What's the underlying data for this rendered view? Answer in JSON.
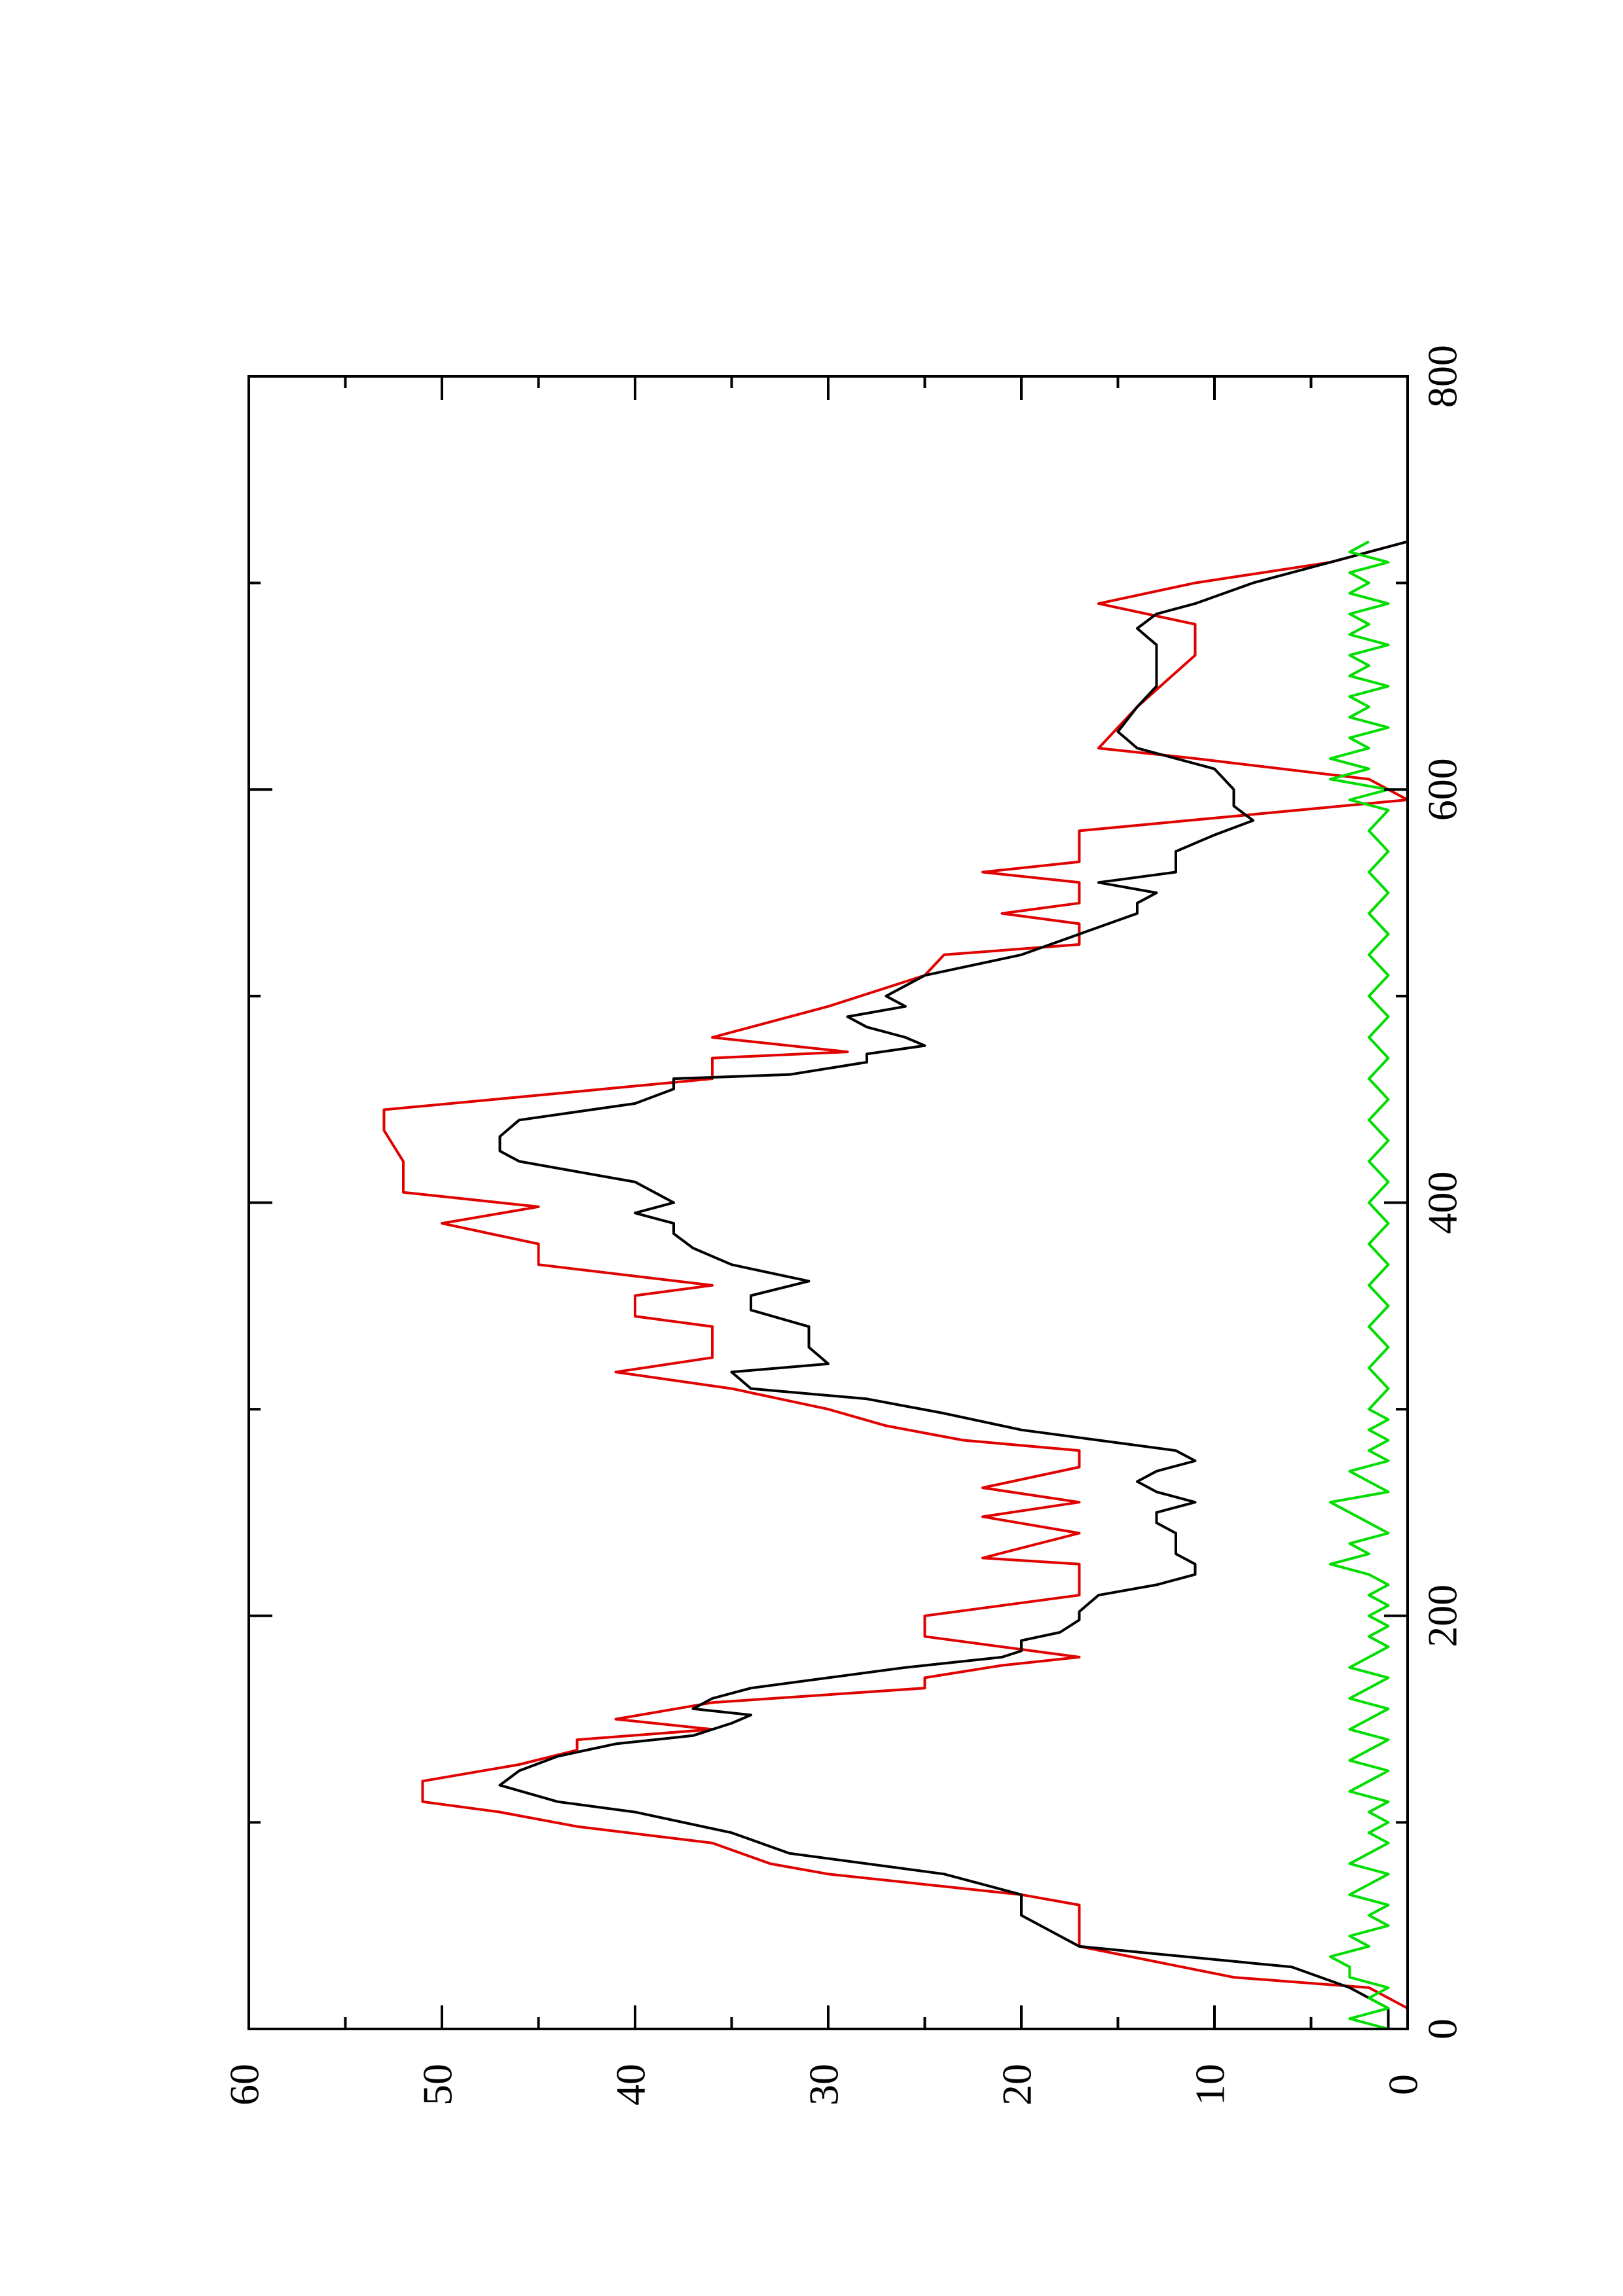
{
  "chart_data": {
    "type": "line",
    "orientation": "rotated-90-counterclockwise",
    "title": "",
    "xlabel": "",
    "ylabel": "",
    "xlim": [
      0,
      800
    ],
    "ylim": [
      0,
      60
    ],
    "x_ticks": [
      0,
      200,
      400,
      600,
      800
    ],
    "x_tick_labels": [
      "0",
      "200",
      "400",
      "600",
      "800"
    ],
    "y_ticks": [
      0,
      10,
      20,
      30,
      40,
      50,
      60
    ],
    "y_tick_labels": [
      "0",
      "10",
      "20",
      "30",
      "40",
      "50",
      "60"
    ],
    "grid": false,
    "legend": "none",
    "series": [
      {
        "color": "#e00000",
        "style": "step",
        "points": [
          [
            0,
            0
          ],
          [
            10,
            0
          ],
          [
            20,
            2
          ],
          [
            25,
            9
          ],
          [
            40,
            17
          ],
          [
            60,
            17
          ],
          [
            65,
            20
          ],
          [
            70,
            25
          ],
          [
            75,
            30
          ],
          [
            80,
            33
          ],
          [
            90,
            36
          ],
          [
            98,
            43
          ],
          [
            105,
            47
          ],
          [
            110,
            51
          ],
          [
            120,
            51
          ],
          [
            128,
            46
          ],
          [
            135,
            43
          ],
          [
            140,
            43
          ],
          [
            145,
            36
          ],
          [
            150,
            41
          ],
          [
            158,
            36
          ],
          [
            165,
            25
          ],
          [
            170,
            25
          ],
          [
            176,
            21
          ],
          [
            180,
            17
          ],
          [
            190,
            25
          ],
          [
            200,
            25
          ],
          [
            210,
            17
          ],
          [
            225,
            17
          ],
          [
            228,
            22
          ],
          [
            240,
            17
          ],
          [
            248,
            22
          ],
          [
            255,
            17
          ],
          [
            262,
            22
          ],
          [
            272,
            17
          ],
          [
            280,
            17
          ],
          [
            285,
            23
          ],
          [
            292,
            27
          ],
          [
            300,
            30
          ],
          [
            310,
            35
          ],
          [
            318,
            41
          ],
          [
            325,
            36
          ],
          [
            340,
            36
          ],
          [
            345,
            40
          ],
          [
            355,
            40
          ],
          [
            360,
            36
          ],
          [
            370,
            45
          ],
          [
            380,
            45
          ],
          [
            390,
            50
          ],
          [
            398,
            45
          ],
          [
            405,
            52
          ],
          [
            420,
            52
          ],
          [
            435,
            53
          ],
          [
            445,
            53
          ],
          [
            452,
            45
          ],
          [
            460,
            36
          ],
          [
            470,
            36
          ],
          [
            473,
            29
          ],
          [
            480,
            36
          ],
          [
            495,
            30
          ],
          [
            510,
            25
          ],
          [
            520,
            24
          ],
          [
            525,
            17
          ],
          [
            535,
            17
          ],
          [
            540,
            21
          ],
          [
            545,
            17
          ],
          [
            555,
            17
          ],
          [
            560,
            22
          ],
          [
            565,
            17
          ],
          [
            580,
            17
          ],
          [
            595,
            0
          ],
          [
            605,
            2
          ],
          [
            615,
            11
          ],
          [
            620,
            16
          ],
          [
            640,
            14
          ],
          [
            665,
            11
          ],
          [
            680,
            11
          ],
          [
            690,
            16
          ],
          [
            700,
            11
          ],
          [
            710,
            4
          ],
          [
            720,
            0
          ]
        ]
      },
      {
        "color": "#000000",
        "style": "line",
        "points": [
          [
            0,
            1
          ],
          [
            10,
            1
          ],
          [
            20,
            3
          ],
          [
            30,
            6
          ],
          [
            40,
            17
          ],
          [
            45,
            18
          ],
          [
            55,
            20
          ],
          [
            65,
            20
          ],
          [
            75,
            24
          ],
          [
            85,
            32
          ],
          [
            95,
            35
          ],
          [
            105,
            40
          ],
          [
            110,
            44
          ],
          [
            118,
            47
          ],
          [
            125,
            46
          ],
          [
            132,
            44
          ],
          [
            138,
            41
          ],
          [
            142,
            37
          ],
          [
            148,
            35
          ],
          [
            152,
            34
          ],
          [
            155,
            37
          ],
          [
            160,
            36
          ],
          [
            165,
            34
          ],
          [
            170,
            30
          ],
          [
            175,
            26
          ],
          [
            180,
            21
          ],
          [
            183,
            20
          ],
          [
            188,
            20
          ],
          [
            192,
            18
          ],
          [
            198,
            17
          ],
          [
            202,
            17
          ],
          [
            210,
            16
          ],
          [
            215,
            13
          ],
          [
            220,
            11
          ],
          [
            225,
            11
          ],
          [
            230,
            12
          ],
          [
            240,
            12
          ],
          [
            245,
            13
          ],
          [
            250,
            13
          ],
          [
            255,
            11
          ],
          [
            260,
            13
          ],
          [
            265,
            14
          ],
          [
            270,
            13
          ],
          [
            275,
            11
          ],
          [
            280,
            12
          ],
          [
            285,
            16
          ],
          [
            290,
            20
          ],
          [
            298,
            24
          ],
          [
            305,
            28
          ],
          [
            310,
            34
          ],
          [
            318,
            35
          ],
          [
            322,
            30
          ],
          [
            330,
            31
          ],
          [
            340,
            31
          ],
          [
            348,
            34
          ],
          [
            355,
            34
          ],
          [
            362,
            31
          ],
          [
            370,
            35
          ],
          [
            378,
            37
          ],
          [
            385,
            38
          ],
          [
            390,
            38
          ],
          [
            395,
            40
          ],
          [
            400,
            38
          ],
          [
            410,
            40
          ],
          [
            420,
            46
          ],
          [
            425,
            47
          ],
          [
            432,
            47
          ],
          [
            440,
            46
          ],
          [
            448,
            40
          ],
          [
            455,
            38
          ],
          [
            460,
            38
          ],
          [
            462,
            32
          ],
          [
            468,
            28
          ],
          [
            472,
            28
          ],
          [
            476,
            25
          ],
          [
            480,
            26
          ],
          [
            485,
            28
          ],
          [
            490,
            29
          ],
          [
            495,
            26
          ],
          [
            500,
            27
          ],
          [
            510,
            25
          ],
          [
            520,
            20
          ],
          [
            530,
            17
          ],
          [
            540,
            14
          ],
          [
            545,
            14
          ],
          [
            550,
            13
          ],
          [
            555,
            16
          ],
          [
            560,
            12
          ],
          [
            570,
            12
          ],
          [
            578,
            10
          ],
          [
            585,
            8
          ],
          [
            592,
            9
          ],
          [
            600,
            9
          ],
          [
            610,
            10
          ],
          [
            620,
            14
          ],
          [
            628,
            15
          ],
          [
            640,
            14
          ],
          [
            650,
            13
          ],
          [
            660,
            13
          ],
          [
            670,
            13
          ],
          [
            678,
            14
          ],
          [
            685,
            13
          ],
          [
            690,
            11
          ],
          [
            700,
            8
          ],
          [
            710,
            4
          ],
          [
            720,
            0
          ]
        ]
      },
      {
        "color": "#00dd00",
        "style": "noisy-line",
        "points": [
          [
            0,
            1
          ],
          [
            5,
            3
          ],
          [
            10,
            1
          ],
          [
            15,
            2
          ],
          [
            20,
            1
          ],
          [
            25,
            3
          ],
          [
            30,
            3
          ],
          [
            35,
            4
          ],
          [
            40,
            2
          ],
          [
            45,
            3
          ],
          [
            50,
            1
          ],
          [
            55,
            2
          ],
          [
            60,
            1
          ],
          [
            65,
            3
          ],
          [
            70,
            2
          ],
          [
            75,
            1
          ],
          [
            80,
            3
          ],
          [
            85,
            2
          ],
          [
            90,
            1
          ],
          [
            95,
            2
          ],
          [
            100,
            1
          ],
          [
            105,
            2
          ],
          [
            110,
            1
          ],
          [
            115,
            3
          ],
          [
            120,
            2
          ],
          [
            125,
            1
          ],
          [
            130,
            3
          ],
          [
            135,
            2
          ],
          [
            140,
            1
          ],
          [
            145,
            3
          ],
          [
            150,
            2
          ],
          [
            155,
            1
          ],
          [
            160,
            3
          ],
          [
            165,
            2
          ],
          [
            170,
            1
          ],
          [
            175,
            3
          ],
          [
            180,
            2
          ],
          [
            185,
            1
          ],
          [
            190,
            2
          ],
          [
            195,
            1
          ],
          [
            200,
            2
          ],
          [
            205,
            1
          ],
          [
            210,
            2
          ],
          [
            215,
            1
          ],
          [
            220,
            2
          ],
          [
            225,
            4
          ],
          [
            230,
            2
          ],
          [
            235,
            3
          ],
          [
            240,
            1
          ],
          [
            245,
            2
          ],
          [
            250,
            3
          ],
          [
            255,
            4
          ],
          [
            260,
            1
          ],
          [
            265,
            2
          ],
          [
            270,
            3
          ],
          [
            275,
            1
          ],
          [
            280,
            2
          ],
          [
            285,
            1
          ],
          [
            290,
            2
          ],
          [
            295,
            1
          ],
          [
            300,
            2
          ],
          [
            310,
            1
          ],
          [
            320,
            2
          ],
          [
            330,
            1
          ],
          [
            340,
            2
          ],
          [
            350,
            1
          ],
          [
            360,
            2
          ],
          [
            370,
            1
          ],
          [
            380,
            2
          ],
          [
            390,
            1
          ],
          [
            400,
            2
          ],
          [
            410,
            1
          ],
          [
            420,
            2
          ],
          [
            430,
            1
          ],
          [
            440,
            2
          ],
          [
            450,
            1
          ],
          [
            460,
            2
          ],
          [
            470,
            1
          ],
          [
            480,
            2
          ],
          [
            490,
            1
          ],
          [
            500,
            2
          ],
          [
            510,
            1
          ],
          [
            520,
            2
          ],
          [
            530,
            1
          ],
          [
            540,
            2
          ],
          [
            550,
            1
          ],
          [
            560,
            2
          ],
          [
            570,
            1
          ],
          [
            580,
            2
          ],
          [
            590,
            1
          ],
          [
            595,
            3
          ],
          [
            600,
            1
          ],
          [
            605,
            4
          ],
          [
            610,
            2
          ],
          [
            615,
            4
          ],
          [
            620,
            2
          ],
          [
            625,
            3
          ],
          [
            630,
            1
          ],
          [
            635,
            3
          ],
          [
            640,
            2
          ],
          [
            645,
            3
          ],
          [
            650,
            1
          ],
          [
            655,
            3
          ],
          [
            660,
            2
          ],
          [
            665,
            3
          ],
          [
            670,
            1
          ],
          [
            675,
            3
          ],
          [
            680,
            2
          ],
          [
            685,
            3
          ],
          [
            690,
            1
          ],
          [
            695,
            3
          ],
          [
            700,
            2
          ],
          [
            705,
            3
          ],
          [
            710,
            1
          ],
          [
            715,
            3
          ],
          [
            720,
            2
          ]
        ]
      }
    ]
  }
}
